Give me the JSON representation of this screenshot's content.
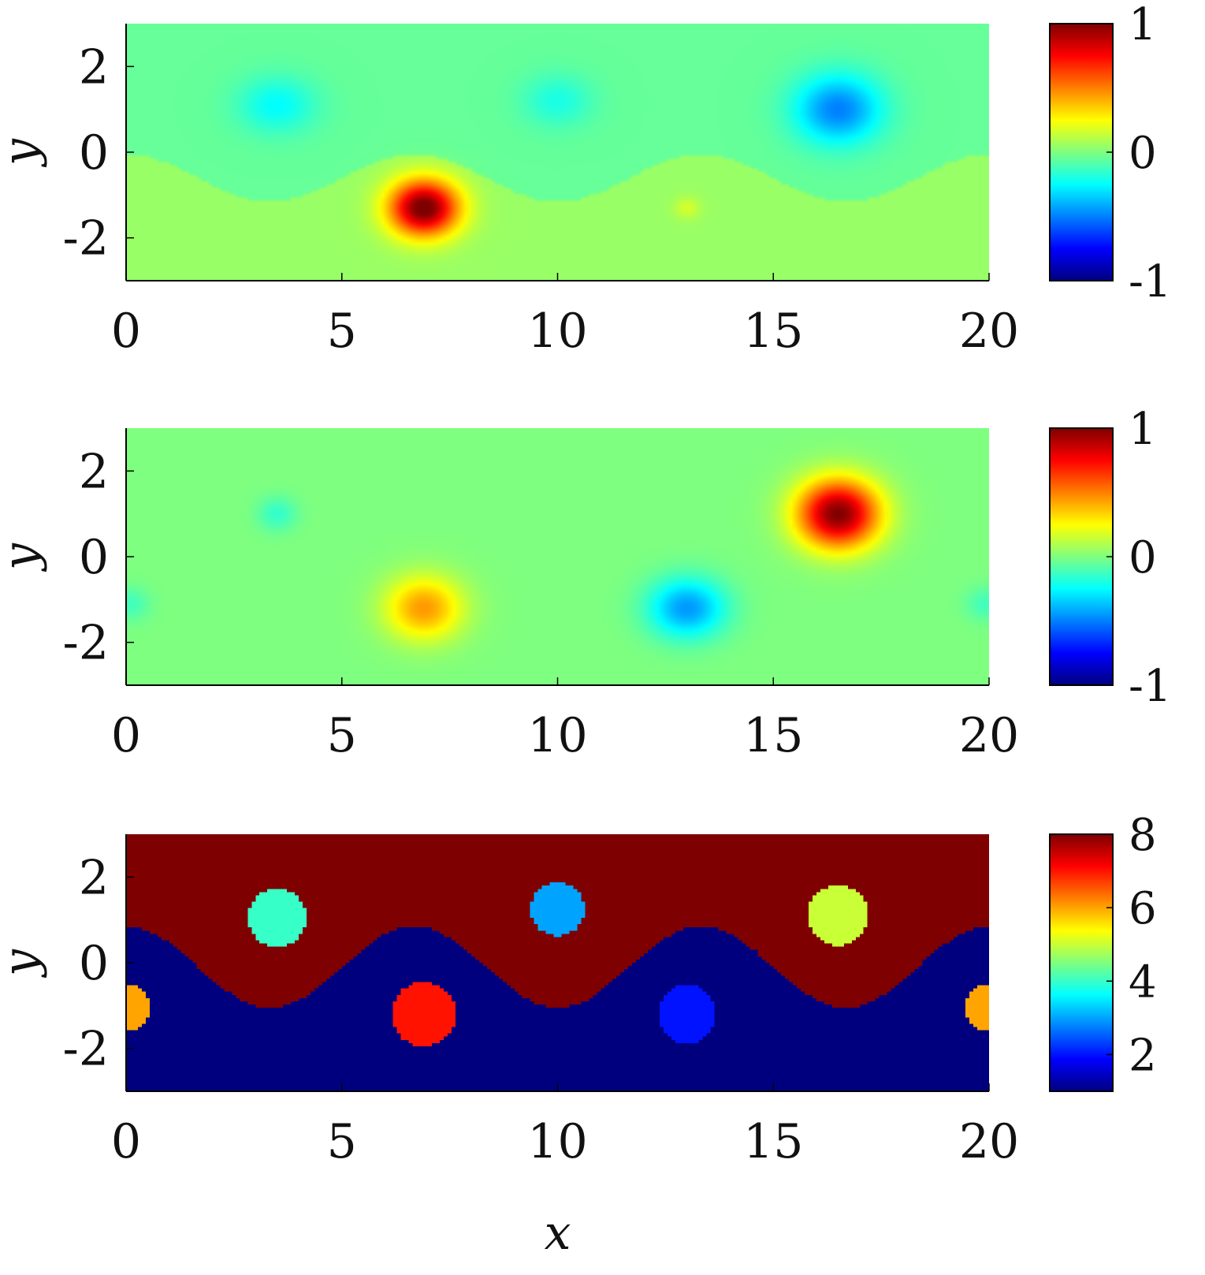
{
  "colormap": "jet",
  "colors": {
    "jet": [
      "#00007f",
      "#0000ff",
      "#007fff",
      "#00ffff",
      "#7fff7f",
      "#ffff00",
      "#ff7f00",
      "#ff0000",
      "#7f0000"
    ]
  },
  "chart_data": [
    {
      "type": "heatmap",
      "panel": "top",
      "xlabel": "",
      "ylabel": "y",
      "xlim": [
        0,
        20
      ],
      "ylim": [
        -3,
        3
      ],
      "xticks": [
        "0",
        "5",
        "10",
        "15",
        "20"
      ],
      "yticks": [
        "-2",
        "0",
        "2"
      ],
      "colorbar": {
        "range": [
          -1,
          1
        ],
        "ticks": [
          "-1",
          "0",
          "1"
        ]
      },
      "background": {
        "upper_value": -0.05,
        "lower_value": 0.05,
        "interface": {
          "mean": -0.6,
          "amplitude": 0.55,
          "period": 6.67,
          "phase_x": 0.0
        }
      },
      "features": [
        {
          "x": 6.9,
          "y": -1.3,
          "peak": 1.0,
          "rx": 0.8,
          "ry": 0.65
        },
        {
          "x": 13.0,
          "y": -1.3,
          "peak": 0.12,
          "rx": 0.3,
          "ry": 0.25
        },
        {
          "x": 3.5,
          "y": 1.1,
          "peak": -0.2,
          "rx": 0.9,
          "ry": 0.65
        },
        {
          "x": 10.0,
          "y": 1.2,
          "peak": -0.15,
          "rx": 0.8,
          "ry": 0.6
        },
        {
          "x": 16.5,
          "y": 1.0,
          "peak": -0.45,
          "rx": 1.0,
          "ry": 0.8
        }
      ]
    },
    {
      "type": "heatmap",
      "panel": "middle",
      "xlabel": "",
      "ylabel": "y",
      "xlim": [
        0,
        20
      ],
      "ylim": [
        -3,
        3
      ],
      "xticks": [
        "0",
        "5",
        "10",
        "15",
        "20"
      ],
      "yticks": [
        "-2",
        "0",
        "2"
      ],
      "colorbar": {
        "range": [
          -1,
          1
        ],
        "ticks": [
          "-1",
          "0",
          "1"
        ]
      },
      "background": {
        "upper_value": 0.0,
        "lower_value": 0.0,
        "interface": {
          "mean": -0.6,
          "amplitude": 0.55,
          "period": 6.67,
          "phase_x": 0.0
        }
      },
      "features": [
        {
          "x": 16.5,
          "y": 1.0,
          "peak": 1.0,
          "rx": 0.95,
          "ry": 0.8
        },
        {
          "x": 6.9,
          "y": -1.2,
          "peak": 0.45,
          "rx": 0.9,
          "ry": 0.75
        },
        {
          "x": 13.0,
          "y": -1.2,
          "peak": -0.45,
          "rx": 0.9,
          "ry": 0.7
        },
        {
          "x": 3.5,
          "y": 1.0,
          "peak": -0.15,
          "rx": 0.45,
          "ry": 0.4
        },
        {
          "x": 0.1,
          "y": -1.1,
          "peak": -0.12,
          "rx": 0.45,
          "ry": 0.4
        },
        {
          "x": 19.9,
          "y": -1.1,
          "peak": -0.12,
          "rx": 0.45,
          "ry": 0.4
        }
      ]
    },
    {
      "type": "heatmap",
      "panel": "bottom",
      "xlabel": "x",
      "ylabel": "y",
      "xlim": [
        0,
        20
      ],
      "ylim": [
        -3,
        3
      ],
      "xticks": [
        "0",
        "5",
        "10",
        "15",
        "20"
      ],
      "yticks": [
        "-2",
        "0",
        "2"
      ],
      "colorbar": {
        "range": [
          1,
          8
        ],
        "ticks": [
          "2",
          "4",
          "6",
          "8"
        ]
      },
      "background": {
        "upper_value": 8,
        "lower_value": 1,
        "interface": {
          "mean": -0.1,
          "amplitude": 0.95,
          "period": 6.67,
          "phase_x": 0.0
        }
      },
      "regions": [
        {
          "x": 3.5,
          "y": 1.05,
          "r": 0.68,
          "value": 4
        },
        {
          "x": 10.0,
          "y": 1.25,
          "r": 0.62,
          "value": 3
        },
        {
          "x": 16.5,
          "y": 1.1,
          "r": 0.7,
          "value": 5
        },
        {
          "x": 6.9,
          "y": -1.2,
          "r": 0.75,
          "value": 7
        },
        {
          "x": 13.0,
          "y": -1.2,
          "r": 0.68,
          "value": 2
        },
        {
          "x": 0.0,
          "y": -1.05,
          "r": 0.55,
          "value": 6
        },
        {
          "x": 20.0,
          "y": -1.05,
          "r": 0.55,
          "value": 6
        }
      ]
    }
  ]
}
